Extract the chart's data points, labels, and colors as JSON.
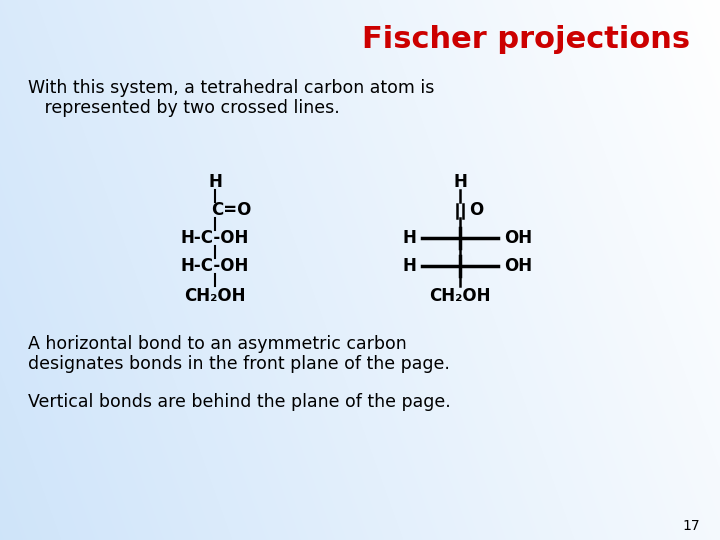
{
  "title": "Fischer projections",
  "title_color": "#CC0000",
  "title_fontsize": 22,
  "body_text_1a": "With this system, a tetrahedral carbon atom is",
  "body_text_1b": "   represented by two crossed lines.",
  "body_text_2a": "A horizontal bond to an asymmetric carbon",
  "body_text_2b": "designates bonds in the front plane of the page.",
  "body_text_3": "Vertical bonds are behind the plane of the page.",
  "page_number": "17",
  "text_color": "#000000"
}
